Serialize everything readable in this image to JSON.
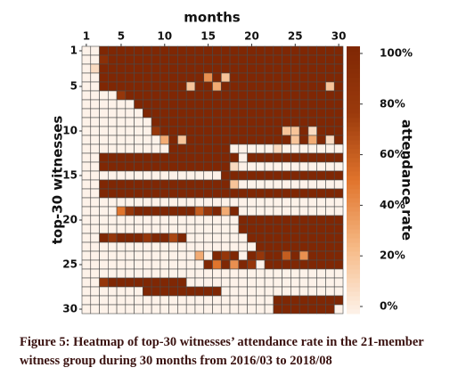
{
  "chart_data": {
    "type": "heatmap",
    "x_label": "months",
    "y_label": "top-30 witnesses",
    "colorbar_label": "attendance rate",
    "xlim": [
      0.5,
      30.5
    ],
    "xticks": [
      1,
      5,
      10,
      15,
      20,
      25,
      30
    ],
    "ylim": [
      0.5,
      30.5
    ],
    "yticks": [
      1,
      5,
      10,
      15,
      20,
      25,
      30
    ],
    "clim": [
      0,
      100
    ],
    "cticks": [
      {
        "value": 0,
        "label": "0%"
      },
      {
        "value": 20,
        "label": "20%"
      },
      {
        "value": 40,
        "label": "40%"
      },
      {
        "value": 60,
        "label": "60%"
      },
      {
        "value": 80,
        "label": "80%"
      },
      {
        "value": 100,
        "label": "100%"
      }
    ],
    "colormap": [
      "#fdf2e9",
      "#f6b985",
      "#e0742c",
      "#9b3a0c",
      "#7f2704"
    ],
    "z": [
      [
        0,
        0,
        100,
        100,
        100,
        100,
        100,
        100,
        100,
        100,
        100,
        100,
        100,
        100,
        100,
        100,
        100,
        100,
        100,
        100,
        100,
        100,
        100,
        100,
        100,
        100,
        100,
        100,
        100,
        100
      ],
      [
        0,
        0,
        90,
        100,
        100,
        100,
        100,
        100,
        100,
        100,
        100,
        100,
        100,
        100,
        100,
        100,
        100,
        100,
        100,
        100,
        100,
        100,
        100,
        100,
        100,
        100,
        100,
        100,
        100,
        100
      ],
      [
        0,
        10,
        100,
        100,
        100,
        100,
        100,
        100,
        100,
        100,
        100,
        100,
        100,
        100,
        100,
        100,
        100,
        100,
        100,
        100,
        100,
        100,
        100,
        100,
        100,
        100,
        100,
        100,
        100,
        100
      ],
      [
        0,
        0,
        100,
        100,
        100,
        100,
        100,
        100,
        100,
        100,
        100,
        100,
        100,
        100,
        40,
        100,
        20,
        100,
        100,
        100,
        100,
        100,
        100,
        100,
        100,
        100,
        100,
        100,
        100,
        100
      ],
      [
        0,
        0,
        100,
        100,
        100,
        100,
        100,
        100,
        100,
        100,
        100,
        100,
        20,
        100,
        100,
        30,
        100,
        100,
        100,
        100,
        100,
        100,
        100,
        100,
        100,
        100,
        100,
        100,
        20,
        100
      ],
      [
        0,
        0,
        0,
        0,
        80,
        100,
        100,
        100,
        100,
        100,
        100,
        100,
        100,
        100,
        100,
        100,
        100,
        100,
        100,
        100,
        100,
        100,
        100,
        100,
        100,
        100,
        100,
        100,
        100,
        100
      ],
      [
        0,
        0,
        0,
        0,
        0,
        0,
        100,
        100,
        100,
        100,
        100,
        100,
        100,
        100,
        100,
        100,
        100,
        100,
        100,
        100,
        100,
        100,
        100,
        100,
        100,
        100,
        100,
        100,
        100,
        100
      ],
      [
        0,
        0,
        0,
        0,
        0,
        0,
        0,
        100,
        100,
        100,
        100,
        100,
        100,
        100,
        100,
        100,
        100,
        100,
        100,
        100,
        100,
        100,
        100,
        100,
        100,
        100,
        100,
        100,
        100,
        100
      ],
      [
        0,
        0,
        0,
        0,
        0,
        0,
        0,
        0,
        100,
        100,
        100,
        100,
        100,
        100,
        100,
        100,
        100,
        100,
        100,
        100,
        100,
        100,
        100,
        100,
        100,
        100,
        100,
        100,
        100,
        100
      ],
      [
        0,
        0,
        0,
        0,
        0,
        0,
        0,
        0,
        80,
        100,
        100,
        100,
        100,
        100,
        100,
        100,
        100,
        100,
        100,
        100,
        100,
        100,
        100,
        20,
        20,
        100,
        10,
        100,
        100,
        100
      ],
      [
        0,
        0,
        0,
        0,
        0,
        0,
        0,
        0,
        0,
        30,
        100,
        20,
        100,
        100,
        100,
        100,
        100,
        100,
        100,
        100,
        100,
        100,
        100,
        100,
        20,
        100,
        30,
        100,
        10,
        100
      ],
      [
        0,
        0,
        0,
        0,
        0,
        0,
        0,
        0,
        0,
        0,
        100,
        100,
        100,
        100,
        100,
        100,
        100,
        0,
        0,
        0,
        0,
        0,
        10,
        0,
        0,
        0,
        0,
        0,
        0,
        0
      ],
      [
        0,
        0,
        100,
        100,
        100,
        100,
        100,
        100,
        100,
        100,
        100,
        100,
        100,
        100,
        100,
        100,
        100,
        100,
        0,
        100,
        100,
        100,
        100,
        100,
        100,
        100,
        100,
        100,
        100,
        100
      ],
      [
        0,
        0,
        100,
        100,
        100,
        100,
        100,
        100,
        100,
        100,
        100,
        100,
        100,
        100,
        100,
        100,
        100,
        10,
        0,
        0,
        0,
        0,
        0,
        0,
        0,
        0,
        0,
        0,
        0,
        0
      ],
      [
        0,
        0,
        0,
        0,
        0,
        0,
        0,
        0,
        0,
        0,
        0,
        0,
        0,
        0,
        0,
        0,
        100,
        100,
        100,
        100,
        100,
        100,
        100,
        100,
        100,
        100,
        100,
        100,
        100,
        100
      ],
      [
        0,
        0,
        100,
        100,
        100,
        100,
        100,
        100,
        100,
        100,
        100,
        100,
        100,
        100,
        100,
        100,
        100,
        20,
        0,
        0,
        0,
        0,
        0,
        0,
        0,
        0,
        0,
        0,
        0,
        0
      ],
      [
        0,
        0,
        100,
        100,
        100,
        100,
        100,
        100,
        100,
        100,
        100,
        100,
        100,
        100,
        100,
        100,
        100,
        100,
        100,
        100,
        100,
        100,
        100,
        100,
        100,
        100,
        100,
        100,
        100,
        100
      ],
      [
        0,
        0,
        0,
        0,
        0,
        0,
        0,
        0,
        0,
        0,
        0,
        0,
        0,
        0,
        0,
        0,
        0,
        0,
        0,
        0,
        0,
        0,
        0,
        0,
        0,
        0,
        0,
        0,
        0,
        0
      ],
      [
        0,
        0,
        0,
        0,
        50,
        80,
        100,
        100,
        100,
        100,
        100,
        100,
        100,
        60,
        80,
        100,
        30,
        100,
        0,
        0,
        0,
        0,
        0,
        0,
        0,
        0,
        0,
        0,
        0,
        0
      ],
      [
        0,
        0,
        0,
        0,
        0,
        0,
        0,
        0,
        0,
        0,
        0,
        0,
        0,
        0,
        0,
        0,
        0,
        0,
        100,
        100,
        100,
        100,
        100,
        100,
        100,
        100,
        100,
        100,
        100,
        100
      ],
      [
        0,
        0,
        0,
        0,
        0,
        0,
        0,
        0,
        0,
        0,
        0,
        0,
        0,
        0,
        0,
        0,
        0,
        0,
        100,
        100,
        100,
        100,
        100,
        100,
        100,
        100,
        100,
        100,
        100,
        100
      ],
      [
        0,
        0,
        100,
        80,
        100,
        100,
        100,
        80,
        100,
        100,
        70,
        100,
        0,
        0,
        0,
        0,
        0,
        0,
        0,
        100,
        100,
        100,
        100,
        100,
        100,
        100,
        100,
        100,
        100,
        100
      ],
      [
        0,
        0,
        0,
        0,
        0,
        0,
        0,
        0,
        0,
        0,
        0,
        0,
        0,
        0,
        0,
        0,
        0,
        0,
        0,
        0,
        100,
        100,
        100,
        100,
        100,
        100,
        100,
        100,
        100,
        100
      ],
      [
        0,
        0,
        0,
        0,
        0,
        0,
        0,
        0,
        0,
        0,
        0,
        0,
        0,
        30,
        0,
        100,
        80,
        100,
        0,
        100,
        80,
        100,
        100,
        60,
        100,
        40,
        100,
        100,
        100,
        100
      ],
      [
        0,
        0,
        0,
        0,
        0,
        0,
        0,
        0,
        0,
        0,
        0,
        0,
        0,
        0,
        100,
        50,
        100,
        40,
        100,
        80,
        0,
        100,
        100,
        100,
        100,
        100,
        100,
        100,
        100,
        100
      ],
      [
        0,
        0,
        0,
        0,
        0,
        0,
        0,
        0,
        0,
        0,
        0,
        0,
        0,
        0,
        0,
        0,
        0,
        0,
        0,
        0,
        0,
        0,
        0,
        0,
        0,
        0,
        0,
        0,
        0,
        0
      ],
      [
        0,
        0,
        80,
        100,
        100,
        100,
        100,
        100,
        100,
        100,
        100,
        100,
        0,
        0,
        0,
        0,
        0,
        0,
        0,
        0,
        0,
        0,
        0,
        0,
        0,
        0,
        0,
        0,
        0,
        0
      ],
      [
        0,
        0,
        0,
        0,
        0,
        0,
        0,
        100,
        100,
        100,
        100,
        100,
        100,
        100,
        100,
        100,
        0,
        0,
        0,
        0,
        0,
        0,
        0,
        0,
        0,
        0,
        0,
        0,
        0,
        0
      ],
      [
        0,
        0,
        0,
        0,
        0,
        0,
        0,
        0,
        0,
        0,
        0,
        0,
        0,
        0,
        0,
        0,
        0,
        0,
        0,
        0,
        0,
        0,
        100,
        100,
        100,
        100,
        100,
        100,
        100,
        100
      ],
      [
        0,
        0,
        0,
        0,
        0,
        0,
        0,
        0,
        0,
        0,
        0,
        0,
        0,
        0,
        0,
        0,
        0,
        0,
        0,
        0,
        0,
        0,
        100,
        100,
        100,
        100,
        100,
        100,
        100,
        0
      ]
    ]
  },
  "caption": {
    "label": "Figure 5:",
    "text": "Heatmap of top-30 witnesses’ attendance rate in the 21-member witness group during 30 months from 2016/03 to 2018/08"
  }
}
